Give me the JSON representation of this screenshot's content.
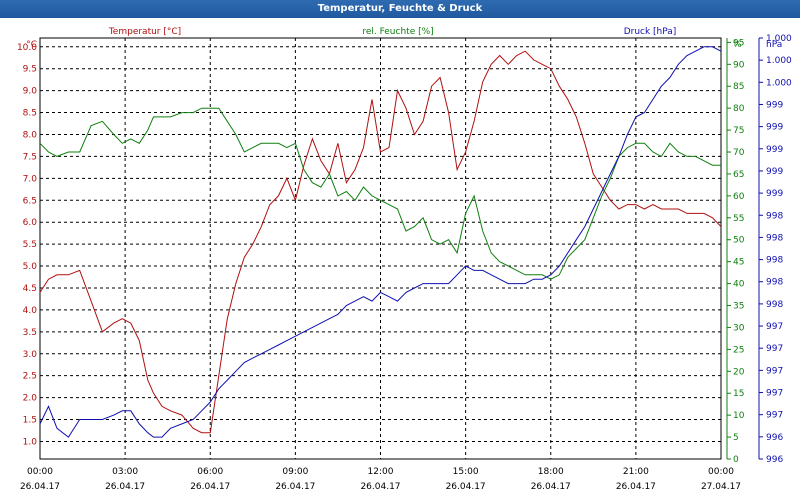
{
  "window": {
    "title": "Temperatur, Feuchte & Druck"
  },
  "chart_data": {
    "type": "line",
    "title": "Temperatur, Feuchte & Druck",
    "grid": true,
    "x_time_labels": [
      "00:00",
      "03:00",
      "06:00",
      "09:00",
      "12:00",
      "15:00",
      "18:00",
      "21:00",
      "00:00"
    ],
    "x_date_labels": [
      "26.04.17",
      "26.04.17",
      "26.04.17",
      "26.04.17",
      "26.04.17",
      "26.04.17",
      "26.04.17",
      "26.04.17",
      "27.04.17"
    ],
    "x_range_hours": [
      0,
      24
    ],
    "axes": {
      "temperature": {
        "label": "Temperatur [°C]",
        "unit": "°C",
        "color": "#b01010",
        "side": "left",
        "ylim": [
          0.6,
          10.2
        ],
        "ticks": [
          "1.0",
          "1.5",
          "2.0",
          "2.5",
          "3.0",
          "3.5",
          "4.0",
          "4.5",
          "5.0",
          "5.5",
          "6.0",
          "6.5",
          "7.0",
          "7.5",
          "8.0",
          "8.5",
          "9.0",
          "9.5",
          "10.0"
        ]
      },
      "humidity": {
        "label": "rel. Feuchte [%]",
        "unit": "%",
        "color": "#108010",
        "side": "right",
        "ylim": [
          0,
          96
        ],
        "ticks": [
          "0",
          "5",
          "10",
          "15",
          "20",
          "25",
          "30",
          "35",
          "40",
          "45",
          "50",
          "55",
          "60",
          "65",
          "70",
          "75",
          "80",
          "85",
          "90",
          "95"
        ]
      },
      "pressure": {
        "label": "Druck [hPa]",
        "unit": "hPa",
        "color": "#1010b0",
        "side": "right-outer",
        "ticks": [
          "996",
          "996",
          "997",
          "997",
          "997",
          "997",
          "997",
          "998",
          "998",
          "998",
          "998",
          "998",
          "999",
          "999",
          "999",
          "999",
          "999",
          "1.000",
          "1.000",
          "1.000"
        ]
      }
    },
    "series": [
      {
        "name": "Temperatur [°C]",
        "axis": "temperature",
        "color": "#b01010",
        "x": [
          0.0,
          0.3,
          0.6,
          1.0,
          1.4,
          1.8,
          2.2,
          2.6,
          2.9,
          3.2,
          3.5,
          3.8,
          4.0,
          4.3,
          4.6,
          5.0,
          5.4,
          5.7,
          6.0,
          6.3,
          6.6,
          6.9,
          7.2,
          7.5,
          7.8,
          8.1,
          8.4,
          8.7,
          9.0,
          9.3,
          9.6,
          9.9,
          10.2,
          10.5,
          10.8,
          11.1,
          11.4,
          11.7,
          12.0,
          12.3,
          12.6,
          12.9,
          13.2,
          13.5,
          13.8,
          14.1,
          14.4,
          14.7,
          15.0,
          15.3,
          15.6,
          15.9,
          16.2,
          16.5,
          16.8,
          17.1,
          17.4,
          17.7,
          18.0,
          18.3,
          18.6,
          18.9,
          19.2,
          19.5,
          19.8,
          20.1,
          20.4,
          20.7,
          21.0,
          21.3,
          21.6,
          21.9,
          22.2,
          22.5,
          22.8,
          23.1,
          23.4,
          23.7,
          24.0
        ],
        "values": [
          4.4,
          4.7,
          4.8,
          4.8,
          4.9,
          4.2,
          3.5,
          3.7,
          3.8,
          3.7,
          3.3,
          2.4,
          2.1,
          1.8,
          1.7,
          1.6,
          1.3,
          1.2,
          1.2,
          2.5,
          3.8,
          4.6,
          5.2,
          5.5,
          5.9,
          6.4,
          6.6,
          7.0,
          6.5,
          7.3,
          7.9,
          7.4,
          7.1,
          7.8,
          6.9,
          7.2,
          7.7,
          8.8,
          7.6,
          7.7,
          9.0,
          8.6,
          8.0,
          8.3,
          9.1,
          9.3,
          8.5,
          7.2,
          7.6,
          8.3,
          9.2,
          9.6,
          9.8,
          9.6,
          9.8,
          9.9,
          9.7,
          9.6,
          9.5,
          9.1,
          8.8,
          8.4,
          7.8,
          7.1,
          6.8,
          6.5,
          6.3,
          6.4,
          6.4,
          6.3,
          6.4,
          6.3,
          6.3,
          6.3,
          6.2,
          6.2,
          6.2,
          6.1,
          5.9
        ]
      },
      {
        "name": "rel. Feuchte [%]",
        "axis": "humidity",
        "color": "#108010",
        "x": [
          0.0,
          0.3,
          0.6,
          1.0,
          1.4,
          1.8,
          2.2,
          2.6,
          2.9,
          3.2,
          3.5,
          3.8,
          4.0,
          4.3,
          4.6,
          5.0,
          5.4,
          5.7,
          6.0,
          6.3,
          6.6,
          6.9,
          7.2,
          7.5,
          7.8,
          8.1,
          8.4,
          8.7,
          9.0,
          9.3,
          9.6,
          9.9,
          10.2,
          10.5,
          10.8,
          11.1,
          11.4,
          11.7,
          12.0,
          12.3,
          12.6,
          12.9,
          13.2,
          13.5,
          13.8,
          14.1,
          14.4,
          14.7,
          15.0,
          15.3,
          15.6,
          15.9,
          16.2,
          16.5,
          16.8,
          17.1,
          17.4,
          17.7,
          18.0,
          18.3,
          18.6,
          18.9,
          19.2,
          19.5,
          19.8,
          20.1,
          20.4,
          20.7,
          21.0,
          21.3,
          21.6,
          21.9,
          22.2,
          22.5,
          22.8,
          23.1,
          23.4,
          23.7,
          24.0
        ],
        "values": [
          72,
          70,
          69,
          70,
          70,
          76,
          77,
          74,
          72,
          73,
          72,
          75,
          78,
          78,
          78,
          79,
          79,
          80,
          80,
          80,
          77,
          74,
          70,
          71,
          72,
          72,
          72,
          71,
          72,
          66,
          63,
          62,
          65,
          60,
          61,
          59,
          62,
          60,
          59,
          58,
          57,
          52,
          53,
          55,
          50,
          49,
          50,
          47,
          56,
          60,
          52,
          47,
          45,
          44,
          43,
          42,
          42,
          42,
          41,
          42,
          46,
          48,
          50,
          55,
          60,
          64,
          69,
          71,
          72,
          72,
          70,
          69,
          72,
          70,
          69,
          69,
          68,
          67,
          67
        ],
        "note_omit": null
      },
      {
        "name": "Druck [hPa]",
        "axis": "pressure",
        "color": "#1010b0",
        "x": [
          0.0,
          0.3,
          0.6,
          1.0,
          1.4,
          1.8,
          2.2,
          2.6,
          2.9,
          3.2,
          3.5,
          3.8,
          4.0,
          4.3,
          4.6,
          5.0,
          5.4,
          5.7,
          6.0,
          6.3,
          6.6,
          6.9,
          7.2,
          7.5,
          7.8,
          8.1,
          8.4,
          8.7,
          9.0,
          9.3,
          9.6,
          9.9,
          10.2,
          10.5,
          10.8,
          11.1,
          11.4,
          11.7,
          12.0,
          12.3,
          12.6,
          12.9,
          13.2,
          13.5,
          13.8,
          14.1,
          14.4,
          14.7,
          15.0,
          15.3,
          15.6,
          15.9,
          16.2,
          16.5,
          16.8,
          17.1,
          17.4,
          17.7,
          18.0,
          18.3,
          18.6,
          18.9,
          19.2,
          19.5,
          19.8,
          20.1,
          20.4,
          20.7,
          21.0,
          21.3,
          21.6,
          21.9,
          22.2,
          22.5,
          22.8,
          23.1,
          23.4,
          23.7,
          24.0
        ],
        "values": [
          996.35,
          996.55,
          996.3,
          996.2,
          996.4,
          996.4,
          996.4,
          996.45,
          996.5,
          996.5,
          996.35,
          996.25,
          996.2,
          996.2,
          996.3,
          996.35,
          996.4,
          996.5,
          996.6,
          996.75,
          996.85,
          996.95,
          997.05,
          997.1,
          997.15,
          997.2,
          997.25,
          997.3,
          997.35,
          997.4,
          997.45,
          997.5,
          997.55,
          997.6,
          997.7,
          997.75,
          997.8,
          997.75,
          997.85,
          997.8,
          997.75,
          997.85,
          997.9,
          997.95,
          997.95,
          997.95,
          997.95,
          998.05,
          998.15,
          998.1,
          998.1,
          998.05,
          998.0,
          997.95,
          997.95,
          997.95,
          998.0,
          998.0,
          998.05,
          998.15,
          998.3,
          998.45,
          998.6,
          998.8,
          999.0,
          999.2,
          999.4,
          999.65,
          999.85,
          999.9,
          1000.05,
          1000.2,
          1000.3,
          1000.45,
          1000.55,
          1000.6,
          1000.65,
          1000.65,
          1000.6
        ],
        "ylim_value": [
          995.95,
          1000.75
        ]
      }
    ]
  }
}
